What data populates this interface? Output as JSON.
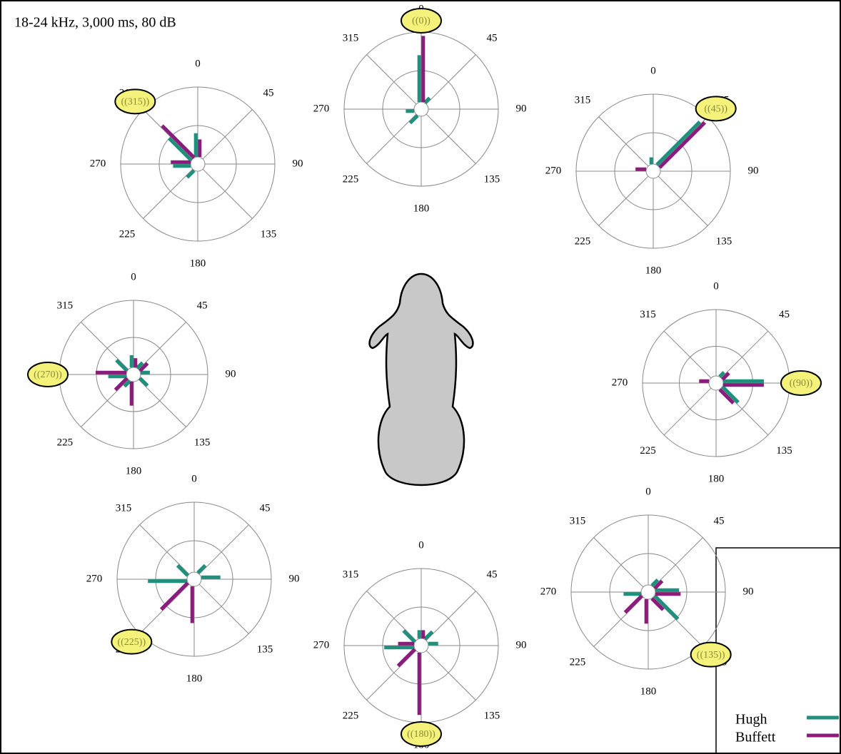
{
  "title": "18-24 kHz, 3,000 ms, 80 dB",
  "chart_data": [
    {
      "type": "polar",
      "label": "((315))",
      "angle_ticks": [
        0,
        45,
        90,
        135,
        180,
        225,
        270,
        315
      ],
      "rlim": [
        0,
        10
      ],
      "rticks": [
        5,
        10
      ],
      "series": [
        {
          "name": "Hugh",
          "color": "#1f8f7e",
          "values": [
            4,
            0,
            0,
            0,
            0,
            2.2,
            3.2,
            5
          ]
        },
        {
          "name": "Buffett",
          "color": "#8a1c7c",
          "values": [
            3.2,
            0,
            0,
            0,
            0,
            0,
            3.5,
            6.8
          ]
        }
      ]
    },
    {
      "type": "polar",
      "label": "((0))",
      "angle_ticks": [
        0,
        45,
        90,
        135,
        180,
        225,
        270,
        315
      ],
      "rlim": [
        0,
        10
      ],
      "rticks": [
        5,
        10
      ],
      "series": [
        {
          "name": "Hugh",
          "color": "#1f8f7e",
          "values": [
            7,
            1.8,
            0,
            0,
            0,
            2.3,
            2,
            0
          ]
        },
        {
          "name": "Buffett",
          "color": "#8a1c7c",
          "values": [
            9.5,
            0,
            0,
            0,
            0,
            0,
            0,
            0
          ]
        }
      ]
    },
    {
      "type": "polar",
      "label": "((45))",
      "angle_ticks": [
        0,
        45,
        90,
        135,
        180,
        225,
        270,
        315
      ],
      "rlim": [
        0,
        10
      ],
      "rticks": [
        5,
        10
      ],
      "series": [
        {
          "name": "Hugh",
          "color": "#1f8f7e",
          "values": [
            1.8,
            8.8,
            0,
            0,
            0,
            0,
            0,
            0
          ]
        },
        {
          "name": "Buffett",
          "color": "#8a1c7c",
          "values": [
            0,
            9.2,
            0,
            0,
            0,
            0,
            2.3,
            0
          ]
        }
      ]
    },
    {
      "type": "polar",
      "label": "((270))",
      "angle_ticks": [
        0,
        45,
        90,
        135,
        180,
        225,
        270,
        315
      ],
      "rlim": [
        0,
        10
      ],
      "rticks": [
        5,
        10
      ],
      "series": [
        {
          "name": "Hugh",
          "color": "#1f8f7e",
          "values": [
            2.6,
            2,
            2.2,
            2.4,
            0,
            2,
            3.4,
            3
          ]
        },
        {
          "name": "Buffett",
          "color": "#8a1c7c",
          "values": [
            2.2,
            2.4,
            0,
            0,
            4.2,
            3.2,
            5.1,
            0
          ]
        }
      ]
    },
    {
      "type": "polar",
      "label": "((90))",
      "angle_ticks": [
        0,
        45,
        90,
        135,
        180,
        225,
        270,
        315
      ],
      "rlim": [
        0,
        10
      ],
      "rticks": [
        5,
        10
      ],
      "series": [
        {
          "name": "Hugh",
          "color": "#1f8f7e",
          "values": [
            0,
            1.8,
            6.5,
            4,
            0,
            0,
            0,
            0
          ]
        },
        {
          "name": "Buffett",
          "color": "#8a1c7c",
          "values": [
            0,
            2.2,
            6.5,
            3.6,
            0,
            0,
            2.3,
            0
          ]
        }
      ]
    },
    {
      "type": "polar",
      "label": "((225))",
      "angle_ticks": [
        0,
        45,
        90,
        135,
        180,
        225,
        270,
        315
      ],
      "rlim": [
        0,
        10
      ],
      "rticks": [
        5,
        10
      ],
      "series": [
        {
          "name": "Hugh",
          "color": "#1f8f7e",
          "values": [
            0,
            2.3,
            3.4,
            0,
            0,
            0,
            6,
            2.8
          ]
        },
        {
          "name": "Buffett",
          "color": "#8a1c7c",
          "values": [
            0,
            0,
            0,
            0,
            5.7,
            5.8,
            0,
            0
          ]
        }
      ]
    },
    {
      "type": "polar",
      "label": "((180))",
      "angle_ticks": [
        0,
        45,
        90,
        135,
        180,
        225,
        270,
        315
      ],
      "rlim": [
        0,
        10
      ],
      "rticks": [
        5,
        10
      ],
      "series": [
        {
          "name": "Hugh",
          "color": "#1f8f7e",
          "values": [
            2,
            2.3,
            2.2,
            0,
            0,
            0,
            4.8,
            3
          ]
        },
        {
          "name": "Buffett",
          "color": "#8a1c7c",
          "values": [
            2,
            0,
            0,
            0,
            9,
            4,
            3,
            0
          ]
        }
      ]
    },
    {
      "type": "polar",
      "label": "((135))",
      "angle_ticks": [
        0,
        45,
        90,
        135,
        180,
        225,
        270,
        315
      ],
      "rlim": [
        0,
        10
      ],
      "rticks": [
        5,
        10
      ],
      "series": [
        {
          "name": "Hugh",
          "color": "#1f8f7e",
          "values": [
            0,
            2,
            4,
            5.2,
            0,
            0,
            3.2,
            0
          ]
        },
        {
          "name": "Buffett",
          "color": "#8a1c7c",
          "values": [
            0,
            2.3,
            4.2,
            3,
            4.1,
            4,
            0,
            0
          ]
        }
      ]
    }
  ]
}
